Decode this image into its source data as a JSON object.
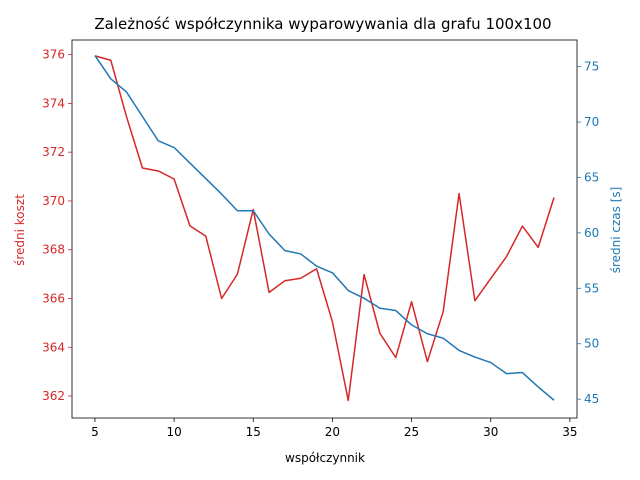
{
  "chart_data": {
    "type": "line",
    "title": "Zależność współczynnika wyparowywania dla grafu 100x100",
    "xlabel": "współczynnik",
    "ylabel_left": "średni koszt",
    "ylabel_right": "średni czas [s]",
    "xlim": [
      3.55,
      35.45
    ],
    "ylim_left": [
      361.1,
      376.6
    ],
    "ylim_right": [
      43.3,
      77.4
    ],
    "x_ticks": [
      "5",
      "10",
      "15",
      "20",
      "25",
      "30",
      "35"
    ],
    "y_left_ticks": [
      "362",
      "364",
      "366",
      "368",
      "370",
      "372",
      "374",
      "376"
    ],
    "y_right_ticks": [
      "45",
      "50",
      "55",
      "60",
      "65",
      "70",
      "75"
    ],
    "colors": {
      "left": "#d62728",
      "right": "#1f77b4"
    },
    "grid": false,
    "x": [
      5,
      6,
      7,
      8,
      9,
      10,
      11,
      12,
      13,
      14,
      15,
      16,
      17,
      18,
      19,
      20,
      21,
      22,
      23,
      24,
      25,
      26,
      27,
      28,
      29,
      30,
      31,
      32,
      33,
      34
    ],
    "series": [
      {
        "axis": "left",
        "values": [
          375.95,
          375.77,
          373.44,
          371.35,
          371.23,
          370.9,
          368.98,
          368.56,
          366.0,
          367.0,
          369.65,
          366.25,
          366.73,
          366.83,
          367.22,
          365.05,
          361.82,
          366.98,
          364.57,
          363.58,
          365.87,
          363.41,
          365.47,
          370.3,
          365.91,
          366.82,
          367.72,
          368.97,
          368.1,
          370.14
        ]
      },
      {
        "axis": "right",
        "values": [
          76.0,
          73.9,
          72.7,
          70.5,
          68.3,
          67.7,
          66.3,
          64.9,
          63.5,
          62.0,
          62.0,
          59.9,
          58.4,
          58.1,
          57.0,
          56.4,
          54.8,
          54.1,
          53.2,
          53.0,
          51.7,
          50.9,
          50.5,
          49.4,
          48.8,
          48.3,
          47.3,
          47.4,
          46.1,
          44.9
        ]
      }
    ]
  }
}
